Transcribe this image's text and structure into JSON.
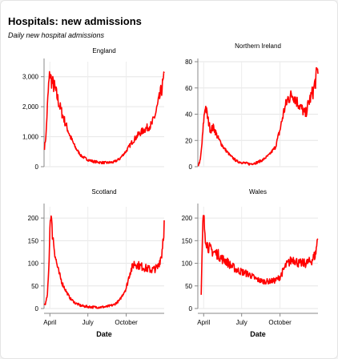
{
  "header": {
    "title": "Hospitals: new admissions",
    "subtitle": "Daily new hospital admissions"
  },
  "chart_data": {
    "type": "line",
    "x_label": "Date",
    "x_ticks": [
      "April",
      "July",
      "October"
    ],
    "x_range": [
      "2020-03-18",
      "2020-12-31"
    ],
    "line_color": "#ff0000",
    "grid": true,
    "panels": [
      {
        "name": "England",
        "ylim": [
          0,
          3500
        ],
        "yticks": [
          0,
          1000,
          2000,
          3000
        ],
        "ytick_labels": [
          "0",
          "1,000",
          "2,000",
          "3,000"
        ],
        "x": [
          "2020-03-19",
          "2020-03-23",
          "2020-03-26",
          "2020-03-29",
          "2020-04-01",
          "2020-04-03",
          "2020-04-07",
          "2020-04-12",
          "2020-04-18",
          "2020-04-25",
          "2020-05-02",
          "2020-05-10",
          "2020-05-20",
          "2020-06-01",
          "2020-06-15",
          "2020-07-01",
          "2020-07-15",
          "2020-08-01",
          "2020-08-15",
          "2020-09-01",
          "2020-09-15",
          "2020-10-01",
          "2020-10-15",
          "2020-11-01",
          "2020-11-15",
          "2020-12-01",
          "2020-12-10",
          "2020-12-20",
          "2020-12-31"
        ],
        "values": [
          620,
          1100,
          2000,
          2700,
          3120,
          2950,
          2800,
          2650,
          2350,
          2000,
          1700,
          1380,
          1000,
          640,
          360,
          230,
          170,
          140,
          130,
          150,
          260,
          520,
          820,
          1100,
          1250,
          1400,
          1750,
          2300,
          2950
        ]
      },
      {
        "name": "Northern Ireland",
        "ylim": [
          0,
          80
        ],
        "yticks": [
          0,
          20,
          40,
          60,
          80
        ],
        "ytick_labels": [
          "0",
          "20",
          "40",
          "60",
          "80"
        ],
        "x": [
          "2020-03-19",
          "2020-03-24",
          "2020-03-28",
          "2020-04-01",
          "2020-04-05",
          "2020-04-10",
          "2020-04-17",
          "2020-04-25",
          "2020-05-05",
          "2020-05-20",
          "2020-06-05",
          "2020-06-20",
          "2020-07-05",
          "2020-07-20",
          "2020-08-05",
          "2020-08-20",
          "2020-09-05",
          "2020-09-20",
          "2020-10-01",
          "2020-10-10",
          "2020-10-20",
          "2020-11-01",
          "2020-11-10",
          "2020-11-20",
          "2020-12-01",
          "2020-12-10",
          "2020-12-20",
          "2020-12-31"
        ],
        "values": [
          1,
          5,
          18,
          35,
          47,
          38,
          28,
          30,
          22,
          14,
          8,
          4,
          3,
          2,
          3,
          5,
          9,
          15,
          28,
          42,
          52,
          55,
          50,
          45,
          40,
          50,
          58,
          75
        ]
      },
      {
        "name": "Scotland",
        "ylim": [
          0,
          225
        ],
        "yticks": [
          0,
          50,
          100,
          150,
          200
        ],
        "ytick_labels": [
          "0",
          "50",
          "100",
          "150",
          "200"
        ],
        "x": [
          "2020-03-18",
          "2020-03-22",
          "2020-03-26",
          "2020-03-29",
          "2020-04-01",
          "2020-04-03",
          "2020-04-06",
          "2020-04-10",
          "2020-04-15",
          "2020-04-22",
          "2020-05-01",
          "2020-05-10",
          "2020-05-20",
          "2020-06-01",
          "2020-06-15",
          "2020-07-01",
          "2020-07-15",
          "2020-08-01",
          "2020-08-15",
          "2020-09-01",
          "2020-09-15",
          "2020-10-01",
          "2020-10-10",
          "2020-10-20",
          "2020-11-01",
          "2020-11-15",
          "2020-12-01",
          "2020-12-15",
          "2020-12-25",
          "2020-12-31"
        ],
        "values": [
          8,
          12,
          30,
          80,
          180,
          215,
          175,
          145,
          110,
          80,
          55,
          38,
          22,
          12,
          6,
          4,
          3,
          3,
          4,
          8,
          18,
          45,
          80,
          100,
          95,
          90,
          85,
          90,
          120,
          185
        ]
      },
      {
        "name": "Wales",
        "ylim": [
          0,
          225
        ],
        "yticks": [
          0,
          50,
          100,
          150,
          200
        ],
        "ytick_labels": [
          "0",
          "50",
          "100",
          "150",
          "200"
        ],
        "x": [
          "2020-03-26",
          "2020-03-30",
          "2020-04-01",
          "2020-04-05",
          "2020-04-10",
          "2020-04-17",
          "2020-04-25",
          "2020-05-05",
          "2020-05-15",
          "2020-05-25",
          "2020-06-05",
          "2020-06-20",
          "2020-07-05",
          "2020-07-20",
          "2020-08-05",
          "2020-08-20",
          "2020-09-05",
          "2020-09-20",
          "2020-10-01",
          "2020-10-15",
          "2020-11-01",
          "2020-11-15",
          "2020-12-01",
          "2020-12-15",
          "2020-12-25",
          "2020-12-31"
        ],
        "values": [
          30,
          185,
          200,
          160,
          140,
          130,
          125,
          120,
          110,
          105,
          95,
          85,
          80,
          75,
          65,
          60,
          60,
          62,
          70,
          95,
          110,
          100,
          100,
          105,
          120,
          160
        ]
      }
    ]
  }
}
